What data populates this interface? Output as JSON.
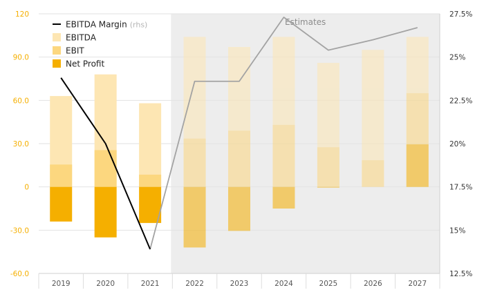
{
  "chart_data": {
    "type": "bar",
    "categories": [
      "2019",
      "2020",
      "2021",
      "2022",
      "2023",
      "2024",
      "2025",
      "2026",
      "2027"
    ],
    "estimate_from": "2022",
    "estimates_label": "Estimates",
    "series": [
      {
        "name": "EBITDA",
        "kind": "bar",
        "axis": "left",
        "color": "#fde6b3",
        "values": [
          63,
          78,
          58,
          104,
          97,
          104,
          86,
          95,
          104
        ]
      },
      {
        "name": "EBIT",
        "kind": "bar",
        "axis": "left",
        "color": "#fcd77f",
        "values": [
          15.5,
          25.5,
          8.5,
          33.5,
          39,
          43,
          27.5,
          18.5,
          65
        ]
      },
      {
        "name": "Net Profit",
        "kind": "bar",
        "axis": "left",
        "color": "#f5af00",
        "values": [
          -24,
          -35,
          -25,
          -42,
          -30.5,
          -15,
          -0.5,
          0,
          29.5
        ]
      },
      {
        "name": "EBITDA Margin",
        "kind": "line",
        "axis": "right",
        "color": "#000000",
        "estimate_color": "#a3a3a3",
        "values": [
          23.8,
          20.0,
          13.9,
          23.6,
          23.6,
          27.3,
          25.4,
          26.0,
          26.7
        ]
      }
    ],
    "legend": [
      {
        "label": "EBITDA Margin",
        "note": "(rhs)",
        "swatch": "line",
        "color": "#000000"
      },
      {
        "label": "EBITDA",
        "swatch": "box",
        "color": "#fde6b3"
      },
      {
        "label": "EBIT",
        "swatch": "box",
        "color": "#fcd77f"
      },
      {
        "label": "Net Profit",
        "swatch": "box",
        "color": "#f5af00"
      }
    ],
    "legend_position": "top-left",
    "y_left": {
      "ticks": [
        "120",
        "90.0",
        "60.0",
        "30.0",
        "0",
        "-30.0",
        "-60.0"
      ],
      "ylim": [
        -60,
        120
      ],
      "color": "#f5af00"
    },
    "y_right": {
      "ticks": [
        "27.5%",
        "25%",
        "22.5%",
        "20%",
        "17.5%",
        "15%",
        "12.5%"
      ],
      "ylim": [
        12.5,
        27.5
      ],
      "color": "#333333"
    },
    "grid": "horizontal",
    "estimate_opacity": 0.55,
    "shade_color": "#ededed"
  }
}
